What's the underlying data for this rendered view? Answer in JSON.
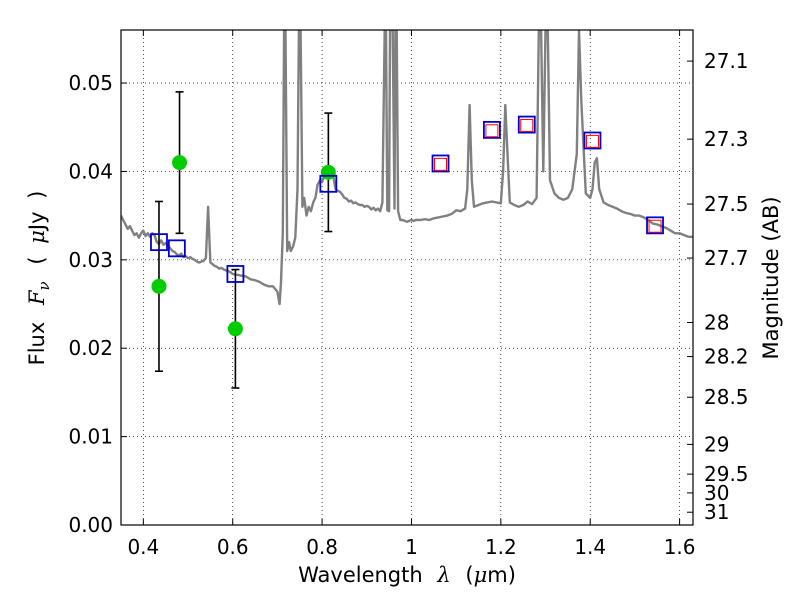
{
  "chart_data": {
    "type": "scatter",
    "xlabel_parts": [
      "Wavelength",
      "λ",
      "(",
      "μ",
      "m)"
    ],
    "ylabel_parts": [
      "Flux",
      "F",
      "ν",
      "(",
      "μ",
      "Jy",
      ")"
    ],
    "ylabel_right": "Magnitude (AB)",
    "xlim": [
      0.35,
      1.63
    ],
    "ylim": [
      0.0,
      0.056
    ],
    "grid": true,
    "x_ticks": [
      {
        "value": 0.4,
        "label": "0.4"
      },
      {
        "value": 0.6,
        "label": "0.6"
      },
      {
        "value": 0.8,
        "label": "0.8"
      },
      {
        "value": 1.0,
        "label": "1"
      },
      {
        "value": 1.2,
        "label": "1.2"
      },
      {
        "value": 1.4,
        "label": "1.4"
      },
      {
        "value": 1.6,
        "label": "1.6"
      }
    ],
    "y_ticks": [
      {
        "value": 0.0,
        "label": "0.00"
      },
      {
        "value": 0.01,
        "label": "0.01"
      },
      {
        "value": 0.02,
        "label": "0.02"
      },
      {
        "value": 0.03,
        "label": "0.03"
      },
      {
        "value": 0.04,
        "label": "0.04"
      },
      {
        "value": 0.05,
        "label": "0.05"
      }
    ],
    "mag_ticks": [
      {
        "value": 27.1,
        "label": "27.1"
      },
      {
        "value": 27.3,
        "label": "27.3"
      },
      {
        "value": 27.5,
        "label": "27.5"
      },
      {
        "value": 27.7,
        "label": "27.7"
      },
      {
        "value": 28.0,
        "label": "28"
      },
      {
        "value": 28.2,
        "label": "28.2"
      },
      {
        "value": 28.5,
        "label": "28.5"
      },
      {
        "value": 29.0,
        "label": "29"
      },
      {
        "value": 29.5,
        "label": "29.5"
      },
      {
        "value": 30.0,
        "label": "30"
      },
      {
        "value": 31.0,
        "label": "31"
      }
    ],
    "series": [
      {
        "name": "model spectrum",
        "kind": "line",
        "color": "#808080",
        "points": [
          [
            0.35,
            0.035
          ],
          [
            0.355,
            0.0345
          ],
          [
            0.36,
            0.034
          ],
          [
            0.365,
            0.0335
          ],
          [
            0.37,
            0.0338
          ],
          [
            0.375,
            0.0333
          ],
          [
            0.38,
            0.0328
          ],
          [
            0.385,
            0.033
          ],
          [
            0.39,
            0.0325
          ],
          [
            0.395,
            0.033
          ],
          [
            0.4,
            0.0333
          ],
          [
            0.405,
            0.0327
          ],
          [
            0.41,
            0.033
          ],
          [
            0.415,
            0.0326
          ],
          [
            0.42,
            0.033
          ],
          [
            0.425,
            0.0328
          ],
          [
            0.43,
            0.032
          ],
          [
            0.435,
            0.0318
          ],
          [
            0.44,
            0.0322
          ],
          [
            0.445,
            0.0317
          ],
          [
            0.45,
            0.0319
          ],
          [
            0.455,
            0.0316
          ],
          [
            0.46,
            0.0313
          ],
          [
            0.465,
            0.031
          ],
          [
            0.47,
            0.0309
          ],
          [
            0.475,
            0.0306
          ],
          [
            0.48,
            0.0305
          ],
          [
            0.485,
            0.0307
          ],
          [
            0.49,
            0.0303
          ],
          [
            0.495,
            0.0304
          ],
          [
            0.5,
            0.0302
          ],
          [
            0.505,
            0.0303
          ],
          [
            0.51,
            0.0301
          ],
          [
            0.515,
            0.03
          ],
          [
            0.52,
            0.0298
          ],
          [
            0.525,
            0.0297
          ],
          [
            0.53,
            0.0298
          ],
          [
            0.535,
            0.0299
          ],
          [
            0.54,
            0.0302
          ],
          [
            0.545,
            0.036
          ],
          [
            0.548,
            0.032
          ],
          [
            0.55,
            0.0297
          ],
          [
            0.555,
            0.0295
          ],
          [
            0.56,
            0.0293
          ],
          [
            0.565,
            0.0292
          ],
          [
            0.57,
            0.029
          ],
          [
            0.575,
            0.0291
          ],
          [
            0.58,
            0.0289
          ],
          [
            0.585,
            0.0288
          ],
          [
            0.59,
            0.0287
          ],
          [
            0.595,
            0.0286
          ],
          [
            0.6,
            0.0284
          ],
          [
            0.61,
            0.0283
          ],
          [
            0.62,
            0.0282
          ],
          [
            0.63,
            0.0281
          ],
          [
            0.64,
            0.0278
          ],
          [
            0.65,
            0.0277
          ],
          [
            0.66,
            0.0275
          ],
          [
            0.67,
            0.0272
          ],
          [
            0.68,
            0.027
          ],
          [
            0.69,
            0.027
          ],
          [
            0.7,
            0.0264
          ],
          [
            0.705,
            0.025
          ],
          [
            0.708,
            0.0275
          ],
          [
            0.712,
            0.033
          ],
          [
            0.715,
            0.056
          ],
          [
            0.718,
            0.056
          ],
          [
            0.722,
            0.031
          ],
          [
            0.726,
            0.032
          ],
          [
            0.73,
            0.031
          ],
          [
            0.735,
            0.0315
          ],
          [
            0.74,
            0.0325
          ],
          [
            0.745,
            0.038
          ],
          [
            0.748,
            0.056
          ],
          [
            0.752,
            0.056
          ],
          [
            0.756,
            0.036
          ],
          [
            0.76,
            0.037
          ],
          [
            0.765,
            0.035
          ],
          [
            0.77,
            0.036
          ],
          [
            0.775,
            0.0355
          ],
          [
            0.78,
            0.0365
          ],
          [
            0.785,
            0.037
          ],
          [
            0.79,
            0.0385
          ],
          [
            0.795,
            0.039
          ],
          [
            0.8,
            0.0388
          ],
          [
            0.805,
            0.0395
          ],
          [
            0.81,
            0.0398
          ],
          [
            0.815,
            0.0397
          ],
          [
            0.82,
            0.04
          ],
          [
            0.825,
            0.0395
          ],
          [
            0.83,
            0.038
          ],
          [
            0.835,
            0.0378
          ],
          [
            0.84,
            0.0377
          ],
          [
            0.845,
            0.0374
          ],
          [
            0.85,
            0.037
          ],
          [
            0.855,
            0.0369
          ],
          [
            0.86,
            0.0366
          ],
          [
            0.865,
            0.0367
          ],
          [
            0.87,
            0.0364
          ],
          [
            0.875,
            0.0365
          ],
          [
            0.88,
            0.0363
          ],
          [
            0.885,
            0.0362
          ],
          [
            0.89,
            0.0362
          ],
          [
            0.895,
            0.036
          ],
          [
            0.9,
            0.0361
          ],
          [
            0.905,
            0.036
          ],
          [
            0.91,
            0.0357
          ],
          [
            0.915,
            0.0359
          ],
          [
            0.92,
            0.0356
          ],
          [
            0.925,
            0.0358
          ],
          [
            0.93,
            0.0355
          ],
          [
            0.935,
            0.0365
          ],
          [
            0.94,
            0.056
          ],
          [
            0.943,
            0.056
          ],
          [
            0.946,
            0.0356
          ],
          [
            0.95,
            0.0355
          ],
          [
            0.952,
            0.056
          ],
          [
            0.955,
            0.056
          ],
          [
            0.958,
            0.056
          ],
          [
            0.962,
            0.0358
          ],
          [
            0.964,
            0.056
          ],
          [
            0.967,
            0.056
          ],
          [
            0.97,
            0.0355
          ],
          [
            0.975,
            0.0345
          ],
          [
            0.98,
            0.0345
          ],
          [
            0.985,
            0.0344
          ],
          [
            0.99,
            0.0343
          ],
          [
            0.995,
            0.0344
          ],
          [
            1.0,
            0.0345
          ],
          [
            1.005,
            0.0344
          ],
          [
            1.01,
            0.0345
          ],
          [
            1.02,
            0.0345
          ],
          [
            1.03,
            0.0346
          ],
          [
            1.04,
            0.0345
          ],
          [
            1.05,
            0.0347
          ],
          [
            1.06,
            0.0348
          ],
          [
            1.07,
            0.0349
          ],
          [
            1.08,
            0.035
          ],
          [
            1.09,
            0.0352
          ],
          [
            1.1,
            0.0356
          ],
          [
            1.11,
            0.0355
          ],
          [
            1.12,
            0.0358
          ],
          [
            1.125,
            0.038
          ],
          [
            1.13,
            0.0475
          ],
          [
            1.135,
            0.039
          ],
          [
            1.14,
            0.036
          ],
          [
            1.15,
            0.0362
          ],
          [
            1.16,
            0.0364
          ],
          [
            1.17,
            0.0365
          ],
          [
            1.18,
            0.0366
          ],
          [
            1.19,
            0.0365
          ],
          [
            1.2,
            0.0364
          ],
          [
            1.205,
            0.04
          ],
          [
            1.21,
            0.0475
          ],
          [
            1.215,
            0.042
          ],
          [
            1.22,
            0.0365
          ],
          [
            1.23,
            0.0362
          ],
          [
            1.24,
            0.036
          ],
          [
            1.25,
            0.0362
          ],
          [
            1.26,
            0.0366
          ],
          [
            1.27,
            0.0363
          ],
          [
            1.28,
            0.037
          ],
          [
            1.285,
            0.056
          ],
          [
            1.29,
            0.056
          ],
          [
            1.295,
            0.04
          ],
          [
            1.3,
            0.056
          ],
          [
            1.305,
            0.056
          ],
          [
            1.31,
            0.039
          ],
          [
            1.32,
            0.0375
          ],
          [
            1.33,
            0.037
          ],
          [
            1.34,
            0.0368
          ],
          [
            1.35,
            0.037
          ],
          [
            1.36,
            0.038
          ],
          [
            1.37,
            0.042
          ],
          [
            1.375,
            0.056
          ],
          [
            1.38,
            0.048
          ],
          [
            1.39,
            0.0375
          ],
          [
            1.4,
            0.037
          ],
          [
            1.405,
            0.038
          ],
          [
            1.41,
            0.041
          ],
          [
            1.415,
            0.0415
          ],
          [
            1.42,
            0.038
          ],
          [
            1.43,
            0.0365
          ],
          [
            1.44,
            0.0362
          ],
          [
            1.45,
            0.036
          ],
          [
            1.46,
            0.0358
          ],
          [
            1.47,
            0.0355
          ],
          [
            1.48,
            0.0353
          ],
          [
            1.49,
            0.0352
          ],
          [
            1.5,
            0.035
          ],
          [
            1.51,
            0.035
          ],
          [
            1.52,
            0.0348
          ],
          [
            1.53,
            0.0345
          ],
          [
            1.54,
            0.0341
          ],
          [
            1.55,
            0.034
          ],
          [
            1.56,
            0.0338
          ],
          [
            1.57,
            0.0336
          ],
          [
            1.58,
            0.0333
          ],
          [
            1.59,
            0.033
          ],
          [
            1.6,
            0.033
          ],
          [
            1.61,
            0.0328
          ],
          [
            1.62,
            0.0326
          ],
          [
            1.63,
            0.0326
          ]
        ]
      },
      {
        "name": "observed photometry",
        "kind": "errorbar",
        "color": "#00cc00",
        "points": [
          {
            "x": 0.435,
            "y": 0.027,
            "err": 0.0096
          },
          {
            "x": 0.481,
            "y": 0.041,
            "err": 0.008
          },
          {
            "x": 0.606,
            "y": 0.0222,
            "err": 0.0067
          },
          {
            "x": 0.814,
            "y": 0.0399,
            "err": 0.0067
          }
        ]
      },
      {
        "name": "model photometry",
        "kind": "square",
        "color": "#0000cc",
        "points": [
          {
            "x": 0.435,
            "y": 0.032
          },
          {
            "x": 0.475,
            "y": 0.0313
          },
          {
            "x": 0.606,
            "y": 0.0284
          },
          {
            "x": 0.814,
            "y": 0.0386
          },
          {
            "x": 1.065,
            "y": 0.0409
          },
          {
            "x": 1.18,
            "y": 0.0447
          },
          {
            "x": 1.258,
            "y": 0.0453
          },
          {
            "x": 1.405,
            "y": 0.0435
          },
          {
            "x": 1.545,
            "y": 0.0339
          }
        ]
      },
      {
        "name": "observed NIR photometry",
        "kind": "inner-square",
        "color": "#ff0000",
        "points": [
          {
            "x": 1.065,
            "y": 0.0408
          },
          {
            "x": 1.18,
            "y": 0.0446
          },
          {
            "x": 1.258,
            "y": 0.0452
          },
          {
            "x": 1.405,
            "y": 0.0434
          },
          {
            "x": 1.545,
            "y": 0.0338
          }
        ]
      }
    ]
  }
}
